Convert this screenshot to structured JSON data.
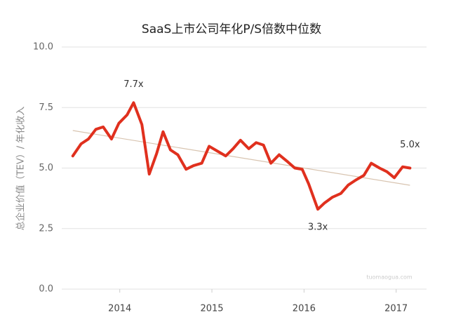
{
  "chart_data": {
    "type": "line",
    "title": "SaaS上市公司年化P/S倍数中位数",
    "y_label": "总企业价值（TEV）/ 年化收入",
    "x": [
      2013.49,
      2013.58,
      2013.66,
      2013.74,
      2013.82,
      2013.91,
      2013.99,
      2014.08,
      2014.15,
      2014.24,
      2014.32,
      2014.4,
      2014.47,
      2014.55,
      2014.63,
      2014.72,
      2014.8,
      2014.89,
      2014.97,
      2015.06,
      2015.15,
      2015.23,
      2015.31,
      2015.4,
      2015.48,
      2015.56,
      2015.64,
      2015.73,
      2015.81,
      2015.9,
      2015.98,
      2016.05,
      2016.15,
      2016.22,
      2016.31,
      2016.4,
      2016.48,
      2016.56,
      2016.65,
      2016.73,
      2016.82,
      2016.9,
      2016.98,
      2017.07,
      2017.15
    ],
    "values": [
      5.5,
      6.0,
      6.2,
      6.6,
      6.7,
      6.2,
      6.85,
      7.2,
      7.7,
      6.8,
      4.75,
      5.6,
      6.5,
      5.75,
      5.55,
      4.95,
      5.1,
      5.2,
      5.9,
      5.7,
      5.5,
      5.8,
      6.15,
      5.8,
      6.05,
      5.95,
      5.2,
      5.55,
      5.3,
      5.0,
      4.95,
      4.35,
      3.3,
      3.55,
      3.8,
      3.95,
      4.3,
      4.5,
      4.7,
      5.2,
      5.0,
      4.85,
      4.6,
      5.05,
      5.0
    ],
    "color": "#e0301e",
    "trendline": {
      "x": [
        2013.49,
        2017.15
      ],
      "values": [
        6.55,
        4.29
      ],
      "color": "#d8c4b0"
    },
    "annotations": [
      {
        "text": "7.7x",
        "x": 2014.15,
        "y": 7.7
      },
      {
        "text": "3.3x",
        "x": 2016.15,
        "y": 3.3
      },
      {
        "text": "5.0x",
        "x": 2017.15,
        "y": 5.0
      }
    ],
    "xlim": [
      2013.37,
      2017.33
    ],
    "xticks": [
      2014,
      2015,
      2016,
      2017
    ],
    "ylim": [
      0,
      10
    ],
    "yticks": [
      {
        "value": 0,
        "label": "0.0"
      },
      {
        "value": 2.5,
        "label": "2.5"
      },
      {
        "value": 5,
        "label": "5.0"
      },
      {
        "value": 7.5,
        "label": "7.5"
      },
      {
        "value": 10,
        "label": "10.0"
      }
    ],
    "grid": true,
    "watermark": "tuomaogua.com"
  }
}
